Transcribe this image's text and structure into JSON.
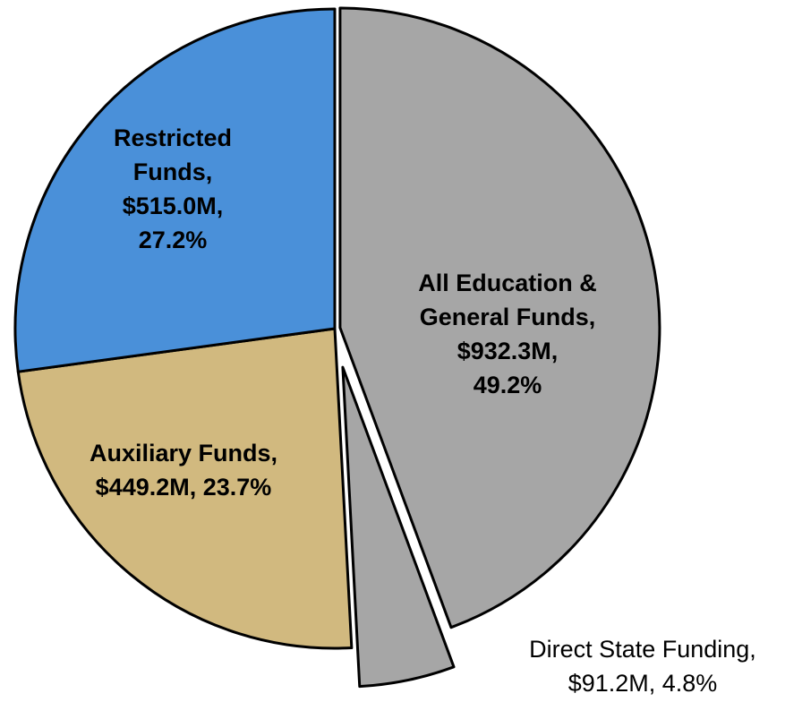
{
  "chart_data": {
    "type": "pie",
    "slices": [
      {
        "label": [
          "All Education &",
          "General Funds,",
          "$932.3M,",
          "49.2%"
        ],
        "value": 932.3,
        "color": "#a6a6a6",
        "sub_slice": {
          "label": [
            "Direct State Funding,",
            "$91.2M, 4.8%"
          ],
          "value": 91.2,
          "color": "#a6a6a6"
        }
      },
      {
        "label": [
          "Auxiliary Funds,",
          "$449.2M, 23.7%"
        ],
        "value": 449.2,
        "color": "#d1b97f"
      },
      {
        "label": [
          "Restricted",
          "Funds,",
          "$515.0M,",
          "27.2%"
        ],
        "value": 515.0,
        "color": "#4a90d9"
      }
    ]
  }
}
